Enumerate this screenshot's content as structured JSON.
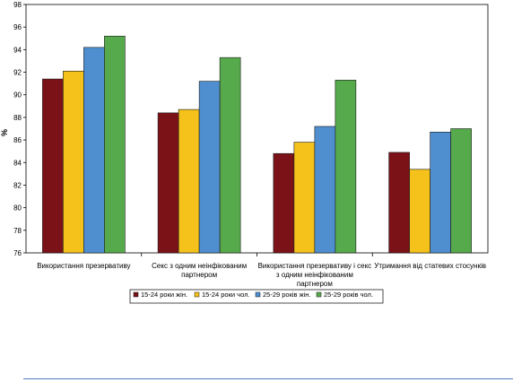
{
  "chart_data": {
    "type": "bar",
    "title": "",
    "xlabel": "",
    "ylabel": "%",
    "ylim": [
      76,
      98
    ],
    "yticks": [
      76,
      78,
      80,
      82,
      84,
      86,
      88,
      90,
      92,
      94,
      96,
      98
    ],
    "grid": false,
    "legend_position": "bottom",
    "categories": [
      [
        "Використання презервативу"
      ],
      [
        "Секс з одним неінфікованим",
        "партнером"
      ],
      [
        "Використання презервативу і секс",
        "з одним неінфікованим",
        "партнером"
      ],
      [
        "Утримання від статевих стосунків"
      ]
    ],
    "series": [
      {
        "name": "15-24 роки жін.",
        "color": "#7b1218",
        "values": [
          91.4,
          88.4,
          84.8,
          84.9
        ]
      },
      {
        "name": "15-24 роки чол.",
        "color": "#f4c21b",
        "values": [
          92.1,
          88.7,
          85.8,
          83.4
        ]
      },
      {
        "name": "25-29 років жін.",
        "color": "#4f8fcf",
        "values": [
          94.2,
          91.2,
          87.2,
          86.7
        ]
      },
      {
        "name": "25-29 років чол.",
        "color": "#56aa4b",
        "values": [
          95.2,
          93.3,
          91.3,
          87.0
        ]
      }
    ]
  }
}
